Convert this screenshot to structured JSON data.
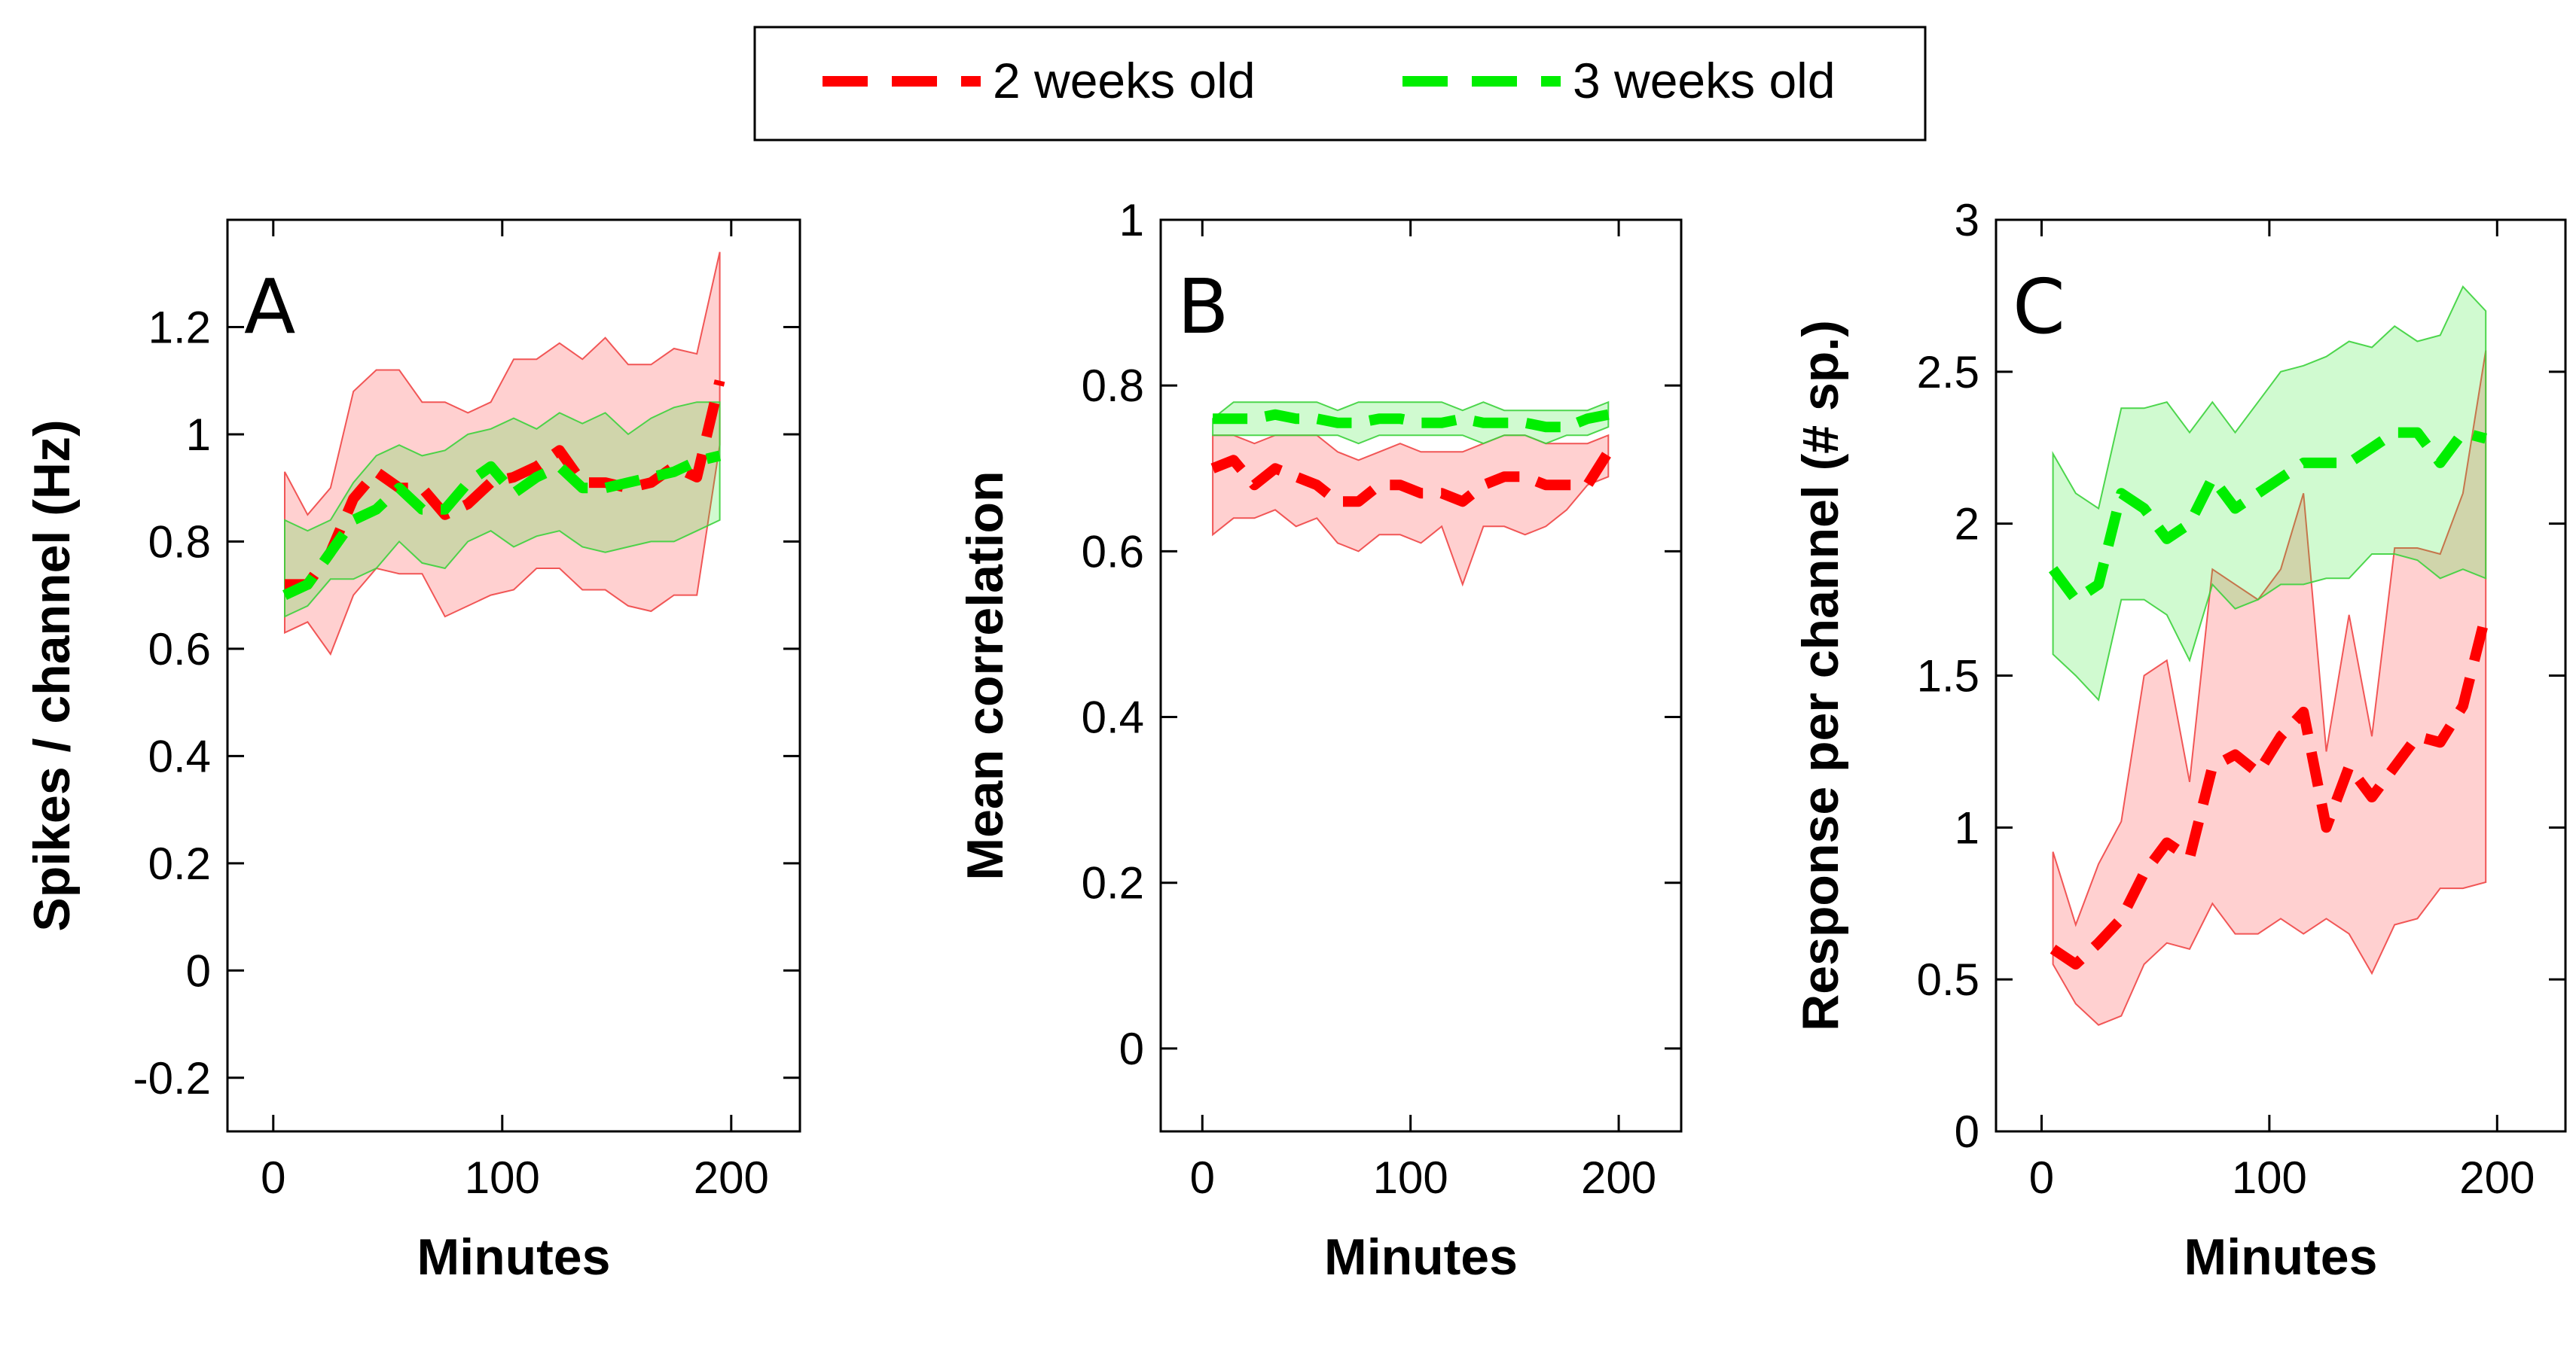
{
  "legend": {
    "entries": [
      {
        "label": "2 weeks old",
        "color": "#ff0000"
      },
      {
        "label": "3 weeks old",
        "color": "#00ee00"
      }
    ]
  },
  "chart_data": [
    {
      "type": "line",
      "panel_letter": "A",
      "xlabel": "Minutes",
      "ylabel": "Spikes / channel (Hz)",
      "xlim": [
        -20,
        230
      ],
      "ylim": [
        -0.3,
        1.4
      ],
      "xticks": [
        "0",
        "100",
        "200"
      ],
      "yticks": [
        "-0.2",
        "0",
        "0.2",
        "0.4",
        "0.6",
        "0.8",
        "1",
        "1.2"
      ],
      "series": [
        {
          "legend_ref": 0,
          "x": [
            5,
            15,
            25,
            35,
            45,
            55,
            65,
            75,
            85,
            95,
            105,
            115,
            125,
            135,
            145,
            155,
            165,
            175,
            185,
            195
          ],
          "mean": [
            0.72,
            0.72,
            0.78,
            0.88,
            0.93,
            0.9,
            0.9,
            0.85,
            0.87,
            0.91,
            0.92,
            0.94,
            0.97,
            0.91,
            0.91,
            0.9,
            0.91,
            0.94,
            0.92,
            1.1
          ],
          "upper": [
            0.93,
            0.85,
            0.9,
            1.08,
            1.12,
            1.12,
            1.06,
            1.06,
            1.04,
            1.06,
            1.14,
            1.14,
            1.17,
            1.14,
            1.18,
            1.13,
            1.13,
            1.16,
            1.15,
            1.34
          ],
          "lower": [
            0.63,
            0.65,
            0.59,
            0.7,
            0.75,
            0.74,
            0.74,
            0.66,
            0.68,
            0.7,
            0.71,
            0.75,
            0.75,
            0.71,
            0.71,
            0.68,
            0.67,
            0.7,
            0.7,
            0.98
          ]
        },
        {
          "legend_ref": 1,
          "x": [
            5,
            15,
            25,
            35,
            45,
            55,
            65,
            75,
            85,
            95,
            105,
            115,
            125,
            135,
            145,
            155,
            165,
            175,
            185,
            195
          ],
          "mean": [
            0.7,
            0.72,
            0.78,
            0.84,
            0.86,
            0.9,
            0.86,
            0.86,
            0.91,
            0.94,
            0.89,
            0.92,
            0.94,
            0.9,
            0.9,
            0.91,
            0.92,
            0.93,
            0.95,
            0.96
          ],
          "upper": [
            0.84,
            0.82,
            0.84,
            0.91,
            0.96,
            0.98,
            0.96,
            0.97,
            1.0,
            1.01,
            1.03,
            1.01,
            1.04,
            1.02,
            1.04,
            1.0,
            1.03,
            1.05,
            1.06,
            1.06
          ],
          "lower": [
            0.66,
            0.68,
            0.73,
            0.73,
            0.75,
            0.8,
            0.76,
            0.75,
            0.8,
            0.82,
            0.79,
            0.81,
            0.82,
            0.79,
            0.78,
            0.79,
            0.8,
            0.8,
            0.82,
            0.84
          ]
        }
      ]
    },
    {
      "type": "line",
      "panel_letter": "B",
      "xlabel": "Minutes",
      "ylabel": "Mean correlation",
      "xlim": [
        -20,
        230
      ],
      "ylim": [
        -0.1,
        1.0
      ],
      "xticks": [
        "0",
        "100",
        "200"
      ],
      "yticks": [
        "0",
        "0.2",
        "0.4",
        "0.6",
        "0.8",
        "1"
      ],
      "series": [
        {
          "legend_ref": 0,
          "x": [
            5,
            15,
            25,
            35,
            45,
            55,
            65,
            75,
            85,
            95,
            105,
            115,
            125,
            135,
            145,
            155,
            165,
            175,
            185,
            195
          ],
          "mean": [
            0.7,
            0.71,
            0.68,
            0.7,
            0.69,
            0.68,
            0.66,
            0.66,
            0.68,
            0.68,
            0.67,
            0.67,
            0.66,
            0.68,
            0.69,
            0.69,
            0.68,
            0.68,
            0.68,
            0.72
          ],
          "upper": [
            0.74,
            0.74,
            0.73,
            0.74,
            0.74,
            0.74,
            0.72,
            0.71,
            0.72,
            0.73,
            0.72,
            0.72,
            0.72,
            0.73,
            0.74,
            0.74,
            0.73,
            0.73,
            0.73,
            0.74
          ],
          "lower": [
            0.62,
            0.64,
            0.64,
            0.65,
            0.63,
            0.64,
            0.61,
            0.6,
            0.62,
            0.62,
            0.61,
            0.63,
            0.56,
            0.63,
            0.63,
            0.62,
            0.63,
            0.65,
            0.68,
            0.69
          ]
        },
        {
          "legend_ref": 1,
          "x": [
            5,
            15,
            25,
            35,
            45,
            55,
            65,
            75,
            85,
            95,
            105,
            115,
            125,
            135,
            145,
            155,
            165,
            175,
            185,
            195
          ],
          "mean": [
            0.76,
            0.76,
            0.76,
            0.765,
            0.76,
            0.76,
            0.755,
            0.755,
            0.76,
            0.76,
            0.755,
            0.755,
            0.76,
            0.755,
            0.755,
            0.755,
            0.75,
            0.75,
            0.76,
            0.765
          ],
          "upper": [
            0.76,
            0.78,
            0.78,
            0.78,
            0.78,
            0.78,
            0.77,
            0.78,
            0.78,
            0.78,
            0.78,
            0.78,
            0.77,
            0.78,
            0.77,
            0.77,
            0.77,
            0.77,
            0.77,
            0.78
          ],
          "lower": [
            0.74,
            0.74,
            0.74,
            0.74,
            0.74,
            0.74,
            0.74,
            0.73,
            0.74,
            0.74,
            0.74,
            0.74,
            0.74,
            0.73,
            0.74,
            0.74,
            0.73,
            0.74,
            0.74,
            0.75
          ]
        }
      ]
    },
    {
      "type": "line",
      "panel_letter": "C",
      "xlabel": "Minutes",
      "ylabel": "Response per channel (# sp.)",
      "xlim": [
        -20,
        230
      ],
      "ylim": [
        0,
        3
      ],
      "xticks": [
        "0",
        "100",
        "200"
      ],
      "yticks": [
        "0",
        "0.5",
        "1",
        "1.5",
        "2",
        "2.5",
        "3"
      ],
      "series": [
        {
          "legend_ref": 0,
          "x": [
            5,
            15,
            25,
            35,
            45,
            55,
            65,
            75,
            85,
            95,
            105,
            115,
            125,
            135,
            145,
            155,
            165,
            175,
            185,
            195
          ],
          "mean": [
            0.6,
            0.55,
            0.62,
            0.7,
            0.85,
            0.95,
            0.9,
            1.2,
            1.24,
            1.18,
            1.3,
            1.38,
            1.0,
            1.2,
            1.1,
            1.2,
            1.3,
            1.28,
            1.4,
            1.7
          ],
          "upper": [
            0.92,
            0.68,
            0.88,
            1.02,
            1.5,
            1.55,
            1.15,
            1.85,
            1.8,
            1.75,
            1.85,
            2.1,
            1.25,
            1.7,
            1.3,
            1.92,
            1.92,
            1.9,
            2.1,
            2.57
          ],
          "lower": [
            0.55,
            0.42,
            0.35,
            0.38,
            0.55,
            0.62,
            0.6,
            0.75,
            0.65,
            0.65,
            0.7,
            0.65,
            0.7,
            0.65,
            0.52,
            0.68,
            0.7,
            0.8,
            0.8,
            0.82
          ]
        },
        {
          "legend_ref": 1,
          "x": [
            5,
            15,
            25,
            35,
            45,
            55,
            65,
            75,
            85,
            95,
            105,
            115,
            125,
            135,
            145,
            155,
            165,
            175,
            185,
            195
          ],
          "mean": [
            1.85,
            1.75,
            1.8,
            2.1,
            2.05,
            1.95,
            2.0,
            2.15,
            2.05,
            2.1,
            2.15,
            2.2,
            2.2,
            2.2,
            2.25,
            2.3,
            2.3,
            2.2,
            2.3,
            2.28
          ],
          "upper": [
            2.23,
            2.1,
            2.05,
            2.38,
            2.38,
            2.4,
            2.3,
            2.4,
            2.3,
            2.4,
            2.5,
            2.52,
            2.55,
            2.6,
            2.58,
            2.65,
            2.6,
            2.62,
            2.78,
            2.7
          ],
          "lower": [
            1.57,
            1.5,
            1.42,
            1.75,
            1.75,
            1.7,
            1.55,
            1.8,
            1.72,
            1.75,
            1.8,
            1.8,
            1.82,
            1.82,
            1.9,
            1.9,
            1.88,
            1.82,
            1.85,
            1.82
          ]
        }
      ]
    }
  ]
}
